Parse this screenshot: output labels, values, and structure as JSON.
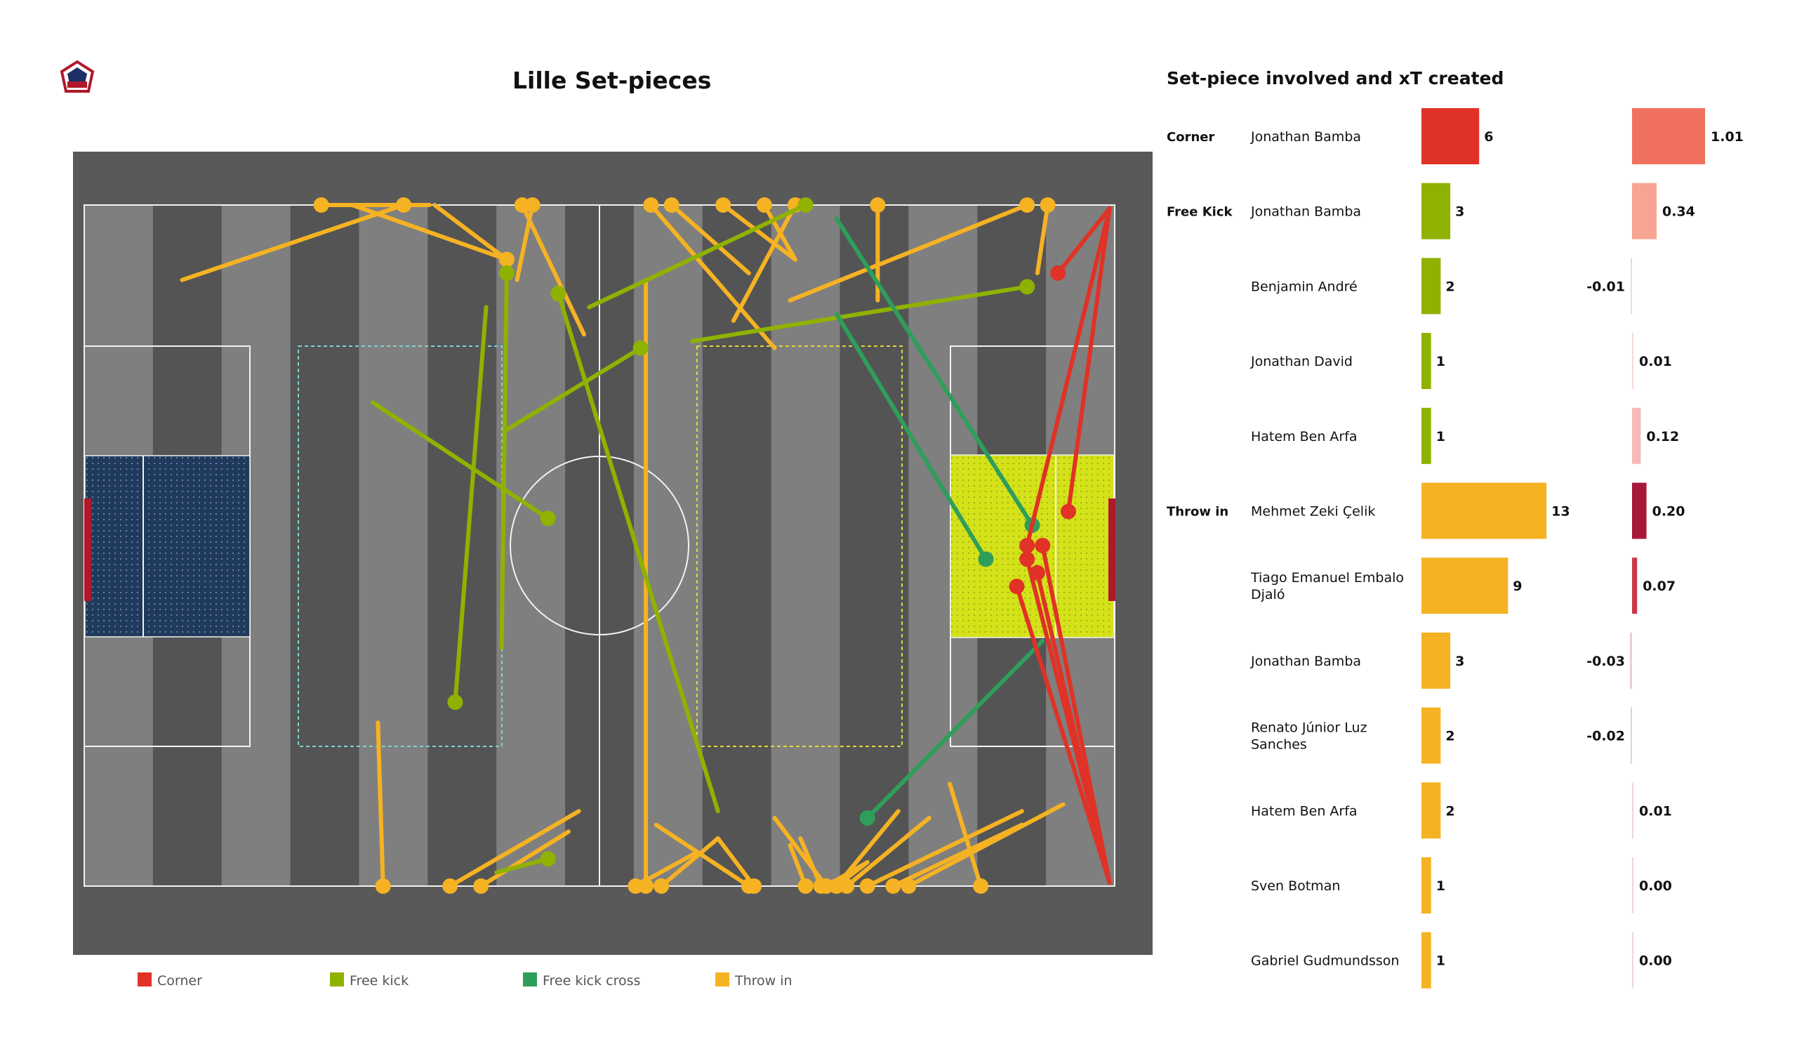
{
  "header": {
    "title": "Lille Set-pieces"
  },
  "logo": {
    "name": "lille-club-crest-icon",
    "text": "LOSC"
  },
  "colors": {
    "corner": "#e03226",
    "free_kick": "#8fb200",
    "free_kick_cross": "#2e9e5b",
    "throw_in": "#f5b223",
    "pitch_bg": "#595959",
    "stripe_dark": "#545454",
    "stripe_light": "#7f7f7f"
  },
  "legend": [
    {
      "label": "Corner",
      "color": "#e03226"
    },
    {
      "label": "Free kick",
      "color": "#8fb200"
    },
    {
      "label": "Free kick cross",
      "color": "#2e9e5b"
    },
    {
      "label": "Throw in",
      "color": "#f5b223"
    }
  ],
  "chart_data": [
    {
      "type": "scatter",
      "subtype": "pass-map",
      "title": "Lille Set-pieces",
      "xlim": [
        0,
        100
      ],
      "ylim": [
        0,
        100
      ],
      "series": [
        {
          "name": "Corner",
          "segments": [
            [
              99.5,
              99.5,
              94.5,
              90
            ],
            [
              99.5,
              99.5,
              95.5,
              55
            ],
            [
              99.5,
              99.5,
              91.5,
              50
            ],
            [
              99.5,
              0.5,
              93,
              50
            ],
            [
              99.5,
              0.5,
              90.5,
              44
            ],
            [
              99.5,
              0.5,
              92.5,
              46
            ],
            [
              99.5,
              0.5,
              91.5,
              48
            ]
          ]
        },
        {
          "name": "Free kick",
          "segments": [
            [
              40.5,
              35,
              41,
              90
            ],
            [
              28,
              71,
              45,
              54
            ],
            [
              41,
              67,
              54,
              79
            ],
            [
              49,
              85,
              70,
              100
            ],
            [
              39,
              85,
              36,
              27
            ],
            [
              61.5,
              11,
              46,
              87
            ],
            [
              59,
              80,
              91.5,
              88
            ],
            [
              40,
              2,
              45,
              4
            ]
          ]
        },
        {
          "name": "Free kick cross",
          "segments": [
            [
              73,
              98,
              92,
              53
            ],
            [
              73,
              84,
              87.5,
              48
            ],
            [
              93,
              36,
              76,
              10
            ]
          ]
        },
        {
          "name": "Throw in",
          "segments": [
            [
              9.5,
              89,
              31,
              100
            ],
            [
              34,
              100,
              41,
              92
            ],
            [
              26,
              100,
              41,
              92
            ],
            [
              33.5,
              100,
              23,
              100
            ],
            [
              42,
              89,
              43.5,
              100
            ],
            [
              48.5,
              81,
              42.5,
              100
            ],
            [
              54.5,
              89,
              54.5,
              0
            ],
            [
              67,
              79,
              55,
              100
            ],
            [
              64.5,
              90,
              57,
              100
            ],
            [
              69,
              92,
              62,
              100
            ],
            [
              69,
              92,
              66,
              100
            ],
            [
              63,
              83,
              69,
              100
            ],
            [
              77,
              86,
              77,
              100
            ],
            [
              68.5,
              86,
              91.5,
              100
            ],
            [
              92.5,
              90,
              93.5,
              100
            ],
            [
              28.5,
              24,
              29,
              0
            ],
            [
              48,
              11,
              35.5,
              0
            ],
            [
              47,
              8,
              38.5,
              0
            ],
            [
              61.5,
              7,
              65,
              0
            ],
            [
              61.5,
              7,
              56,
              0
            ],
            [
              55.5,
              9,
              64.5,
              0
            ],
            [
              59.5,
              5,
              53.5,
              0
            ],
            [
              67,
              10,
              72,
              0
            ],
            [
              68.5,
              6,
              70,
              0
            ],
            [
              69.5,
              7,
              71.5,
              0
            ],
            [
              76,
              3.5,
              72,
              0
            ],
            [
              76,
              3.5,
              73,
              0
            ],
            [
              79,
              11,
              73,
              0
            ],
            [
              82,
              10,
              74,
              0
            ],
            [
              84,
              15,
              87,
              0
            ],
            [
              91,
              11,
              76,
              0
            ],
            [
              91,
              9,
              78.5,
              0
            ],
            [
              95,
              12,
              80,
              0
            ]
          ]
        }
      ]
    },
    {
      "type": "bar",
      "title": "Set-piece involved and xT created",
      "groups": [
        {
          "label": "Corner",
          "start": 0,
          "color": "#e03226"
        },
        {
          "label": "Free Kick",
          "start": 1,
          "color": "#8fb200"
        },
        {
          "label": "Throw in",
          "start": 5,
          "color": "#f5b223"
        }
      ],
      "rows": [
        {
          "player": [
            "Jonathan Bamba"
          ],
          "count": 6,
          "xt": 1.01,
          "count_label": "6",
          "xt_label": "1.01",
          "xt_color": "#f07060"
        },
        {
          "player": [
            "Jonathan Bamba"
          ],
          "count": 3,
          "xt": 0.34,
          "count_label": "3",
          "xt_label": "0.34",
          "xt_color": "#f7a493"
        },
        {
          "player": [
            "Benjamin André"
          ],
          "count": 2,
          "xt": -0.01,
          "count_label": "2",
          "xt_label": "-0.01",
          "xt_color": "#f7d7d2"
        },
        {
          "player": [
            "Jonathan David"
          ],
          "count": 1,
          "xt": 0.01,
          "count_label": "1",
          "xt_label": "0.01",
          "xt_color": "#f7d7d2"
        },
        {
          "player": [
            "Hatem Ben Arfa"
          ],
          "count": 1,
          "xt": 0.12,
          "count_label": "1",
          "xt_label": "0.12",
          "xt_color": "#f7b9b5"
        },
        {
          "player": [
            "Mehmet Zeki Çelik"
          ],
          "count": 13,
          "xt": 0.2,
          "count_label": "13",
          "xt_label": "0.20",
          "xt_color": "#a81838"
        },
        {
          "player": [
            "Tiago Emanuel Embalo",
            "Djaló"
          ],
          "count": 9,
          "xt": 0.07,
          "count_label": "9",
          "xt_label": "0.07",
          "xt_color": "#c83a4a"
        },
        {
          "player": [
            "Jonathan Bamba"
          ],
          "count": 3,
          "xt": -0.03,
          "count_label": "3",
          "xt_label": "-0.03",
          "xt_color": "#e8cfd3"
        },
        {
          "player": [
            "Renato Júnior Luz",
            "Sanches"
          ],
          "count": 2,
          "xt": -0.02,
          "count_label": "2",
          "xt_label": "-0.02",
          "xt_color": "#e8cfd3"
        },
        {
          "player": [
            "Hatem Ben Arfa"
          ],
          "count": 2,
          "xt": 0.01,
          "count_label": "2",
          "xt_label": "0.01",
          "xt_color": "#ecd6da"
        },
        {
          "player": [
            "Sven Botman"
          ],
          "count": 1,
          "xt": 0.0,
          "count_label": "1",
          "xt_label": "0.00",
          "xt_color": "#ecd6da"
        },
        {
          "player": [
            "Gabriel Gudmundsson"
          ],
          "count": 1,
          "xt": 0.0,
          "count_label": "1",
          "xt_label": "0.00",
          "xt_color": "#ecd6da"
        }
      ]
    }
  ]
}
